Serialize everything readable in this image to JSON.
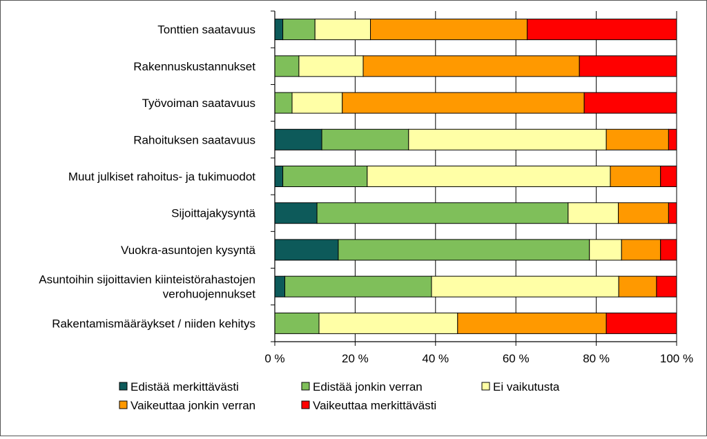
{
  "chart_data": {
    "type": "bar",
    "orientation": "horizontal",
    "stacked": "percent",
    "categories": [
      "Tonttien saatavuus",
      "Rakennuskustannukset",
      "Työvoiman saatavuus",
      "Rahoituksen saatavuus",
      "Muut julkiset rahoitus- ja tukimuodot",
      "Sijoittajakysyntä",
      "Vuokra-asuntojen kysyntä",
      "Asuntoihin sijoittavien kiinteistörahastojen verohuojennukset",
      "Rakentamismääräykset / niiden kehitys"
    ],
    "category_lines": [
      [
        "Tonttien saatavuus"
      ],
      [
        "Rakennuskustannukset"
      ],
      [
        "Työvoiman saatavuus"
      ],
      [
        "Rahoituksen saatavuus"
      ],
      [
        "Muut julkiset rahoitus- ja tukimuodot"
      ],
      [
        "Sijoittajakysyntä"
      ],
      [
        "Vuokra-asuntojen kysyntä"
      ],
      [
        "Asuntoihin sijoittavien kiinteistörahastojen",
        "verohuojennukset"
      ],
      [
        "Rakentamismääräykset / niiden kehitys"
      ]
    ],
    "series": [
      {
        "name": "Edistää merkittävästi",
        "color": "#0d5a5a",
        "values": [
          2,
          0,
          0,
          11.7,
          2,
          10.5,
          15.8,
          2.5,
          0
        ]
      },
      {
        "name": "Edistää jonkin verran",
        "color": "#7fbf5a",
        "values": [
          8,
          6,
          4.3,
          21.6,
          21,
          62.5,
          62.5,
          36.5,
          11
        ]
      },
      {
        "name": "Ei vaikutusta",
        "color": "#ffffa6",
        "values": [
          13.8,
          16,
          12.5,
          49.2,
          60.5,
          12.5,
          8,
          46.6,
          34.5
        ]
      },
      {
        "name": "Vaikeuttaa jonkin verran",
        "color": "#ff9900",
        "values": [
          39,
          53.8,
          60.2,
          15.5,
          12.5,
          12.5,
          9.7,
          9.4,
          37
        ]
      },
      {
        "name": "Vaikeuttaa merkittävästi",
        "color": "#ff0000",
        "values": [
          37.2,
          24.2,
          23,
          2,
          4,
          2,
          4,
          5,
          17.5
        ]
      }
    ],
    "x_ticks": [
      "0 %",
      "20 %",
      "40 %",
      "60 %",
      "80 %",
      "100 %"
    ],
    "xlim": [
      0,
      100
    ],
    "grid": true,
    "legend_position": "bottom"
  }
}
